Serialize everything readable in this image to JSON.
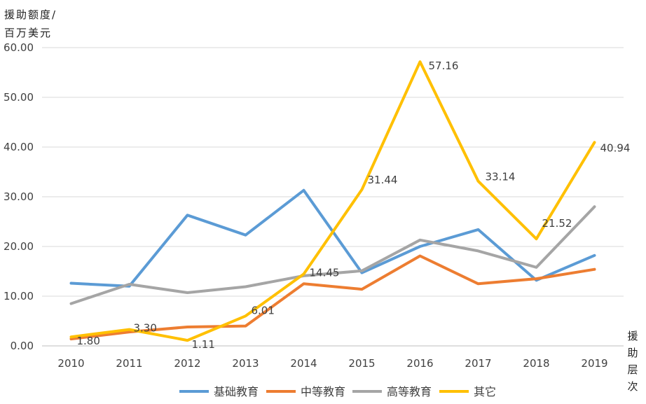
{
  "chart_data": {
    "type": "line",
    "ylabel": "援助额度/百万美元",
    "xlabel": "援助层次",
    "ylim": [
      0,
      60
    ],
    "yticks": [
      "0.00",
      "10.00",
      "20.00",
      "30.00",
      "40.00",
      "50.00",
      "60.00"
    ],
    "x": [
      "2010",
      "2011",
      "2012",
      "2013",
      "2014",
      "2015",
      "2016",
      "2017",
      "2018",
      "2019"
    ],
    "grid": true,
    "legend_position": "bottom",
    "series": [
      {
        "name": "基础教育",
        "color": "#5B9BD5",
        "values": [
          12.6,
          12.0,
          26.3,
          22.3,
          31.3,
          14.7,
          20.0,
          23.4,
          13.2,
          18.2
        ]
      },
      {
        "name": "中等教育",
        "color": "#ED7D31",
        "values": [
          1.4,
          2.8,
          3.8,
          4.0,
          12.5,
          11.4,
          18.1,
          12.5,
          13.5,
          15.4
        ]
      },
      {
        "name": "高等教育",
        "color": "#A5A5A5",
        "values": [
          8.5,
          12.4,
          10.7,
          11.9,
          14.1,
          15.1,
          21.3,
          19.1,
          15.8,
          28.0
        ]
      },
      {
        "name": "其它",
        "color": "#FFC000",
        "values": [
          1.8,
          3.3,
          1.11,
          6.01,
          14.45,
          31.44,
          57.16,
          33.14,
          21.52,
          40.94
        ],
        "data_labels": [
          "1.80",
          "3.30",
          "1.11",
          "6.01",
          "14.45",
          "31.44",
          "57.16",
          "33.14",
          "21.52",
          "40.94"
        ]
      }
    ]
  }
}
